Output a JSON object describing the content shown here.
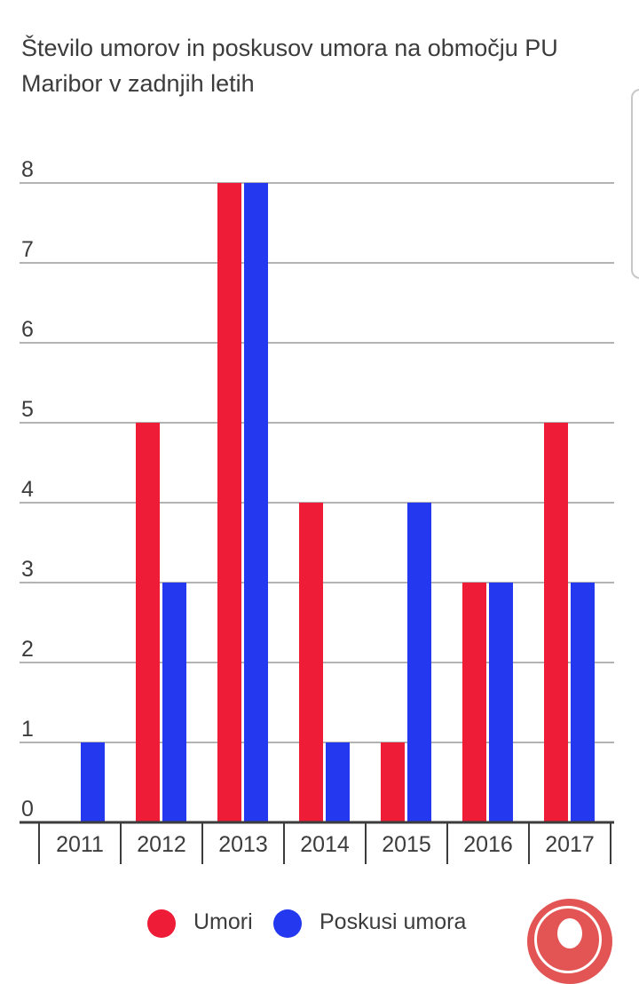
{
  "chart_data": {
    "type": "bar",
    "title": "Število umorov in poskusov umora na območju PU Maribor v zadnjih letih",
    "categories": [
      "2011",
      "2012",
      "2013",
      "2014",
      "2015",
      "2016",
      "2017"
    ],
    "series": [
      {
        "name": "Umori",
        "color": "#ee1c36",
        "values": [
          0,
          5,
          8,
          4,
          1,
          3,
          5
        ]
      },
      {
        "name": "Poskusi umora",
        "color": "#2438f0",
        "values": [
          1,
          3,
          8,
          1,
          4,
          3,
          3
        ]
      }
    ],
    "ylim": [
      0,
      8
    ],
    "yticks": [
      "0",
      "1",
      "2",
      "3",
      "4",
      "5",
      "6",
      "7",
      "8"
    ],
    "grid": true,
    "legend": "bottom"
  },
  "ui": {
    "fab_icon": "chat-icon"
  }
}
